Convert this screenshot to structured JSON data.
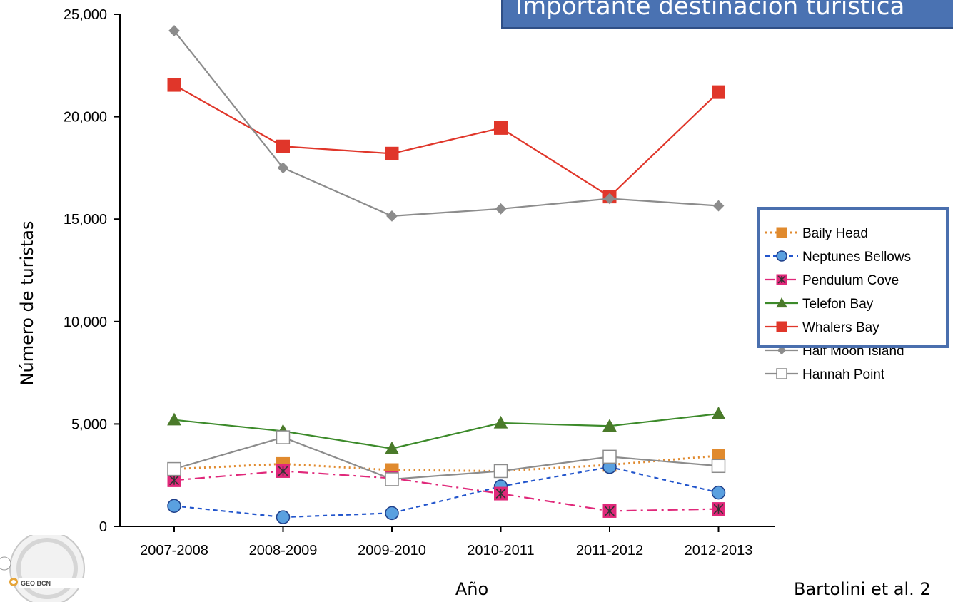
{
  "slide": {
    "title": "Importante destinación turística",
    "citation": "Bartolini et al. 2"
  },
  "logo": {
    "text": "GEO BCN"
  },
  "chart_data": {
    "type": "line",
    "title": "",
    "xlabel": "Año",
    "ylabel": "Número de turistas",
    "categories": [
      "2007-2008",
      "2008-2009",
      "2009-2010",
      "2010-2011",
      "2011-2012",
      "2012-2013"
    ],
    "ylim": [
      0,
      25000
    ],
    "yticks": [
      0,
      5000,
      10000,
      15000,
      20000,
      25000
    ],
    "ytick_labels": [
      "0",
      "5,000",
      "10,000",
      "15,000",
      "20,000",
      "25,000"
    ],
    "grid": false,
    "legend_position": "right",
    "series": [
      {
        "name": "Baily Head",
        "color": "#e08a2e",
        "dash": "dotted",
        "marker": "square-filled",
        "values": [
          2800,
          3050,
          2750,
          2700,
          3000,
          3450
        ]
      },
      {
        "name": "Neptunes Bellows",
        "color": "#2255cc",
        "dash": "dashed",
        "marker": "circle",
        "values": [
          1000,
          450,
          650,
          1950,
          2900,
          1650
        ]
      },
      {
        "name": "Pendulum Cove",
        "color": "#e0287a",
        "dash": "dashdot",
        "marker": "star-box",
        "values": [
          2250,
          2700,
          2350,
          1600,
          750,
          850
        ]
      },
      {
        "name": "Telefon Bay",
        "color": "#3c8a2a",
        "dash": "solid",
        "marker": "triangle",
        "values": [
          5200,
          4650,
          3800,
          5050,
          4900,
          5500
        ]
      },
      {
        "name": "Whalers Bay",
        "color": "#e0362a",
        "dash": "solid",
        "marker": "square-filled",
        "values": [
          21550,
          18550,
          18200,
          19450,
          16100,
          21200
        ]
      },
      {
        "name": "Half Moon Island",
        "color": "#8c8c8c",
        "dash": "solid",
        "marker": "diamond",
        "values": [
          24200,
          17500,
          15150,
          15500,
          16000,
          15650
        ]
      },
      {
        "name": "Hannah Point",
        "color": "#8c8c8c",
        "dash": "solid",
        "marker": "square-open",
        "values": [
          2800,
          4350,
          2300,
          2700,
          3400,
          2950
        ]
      }
    ]
  }
}
